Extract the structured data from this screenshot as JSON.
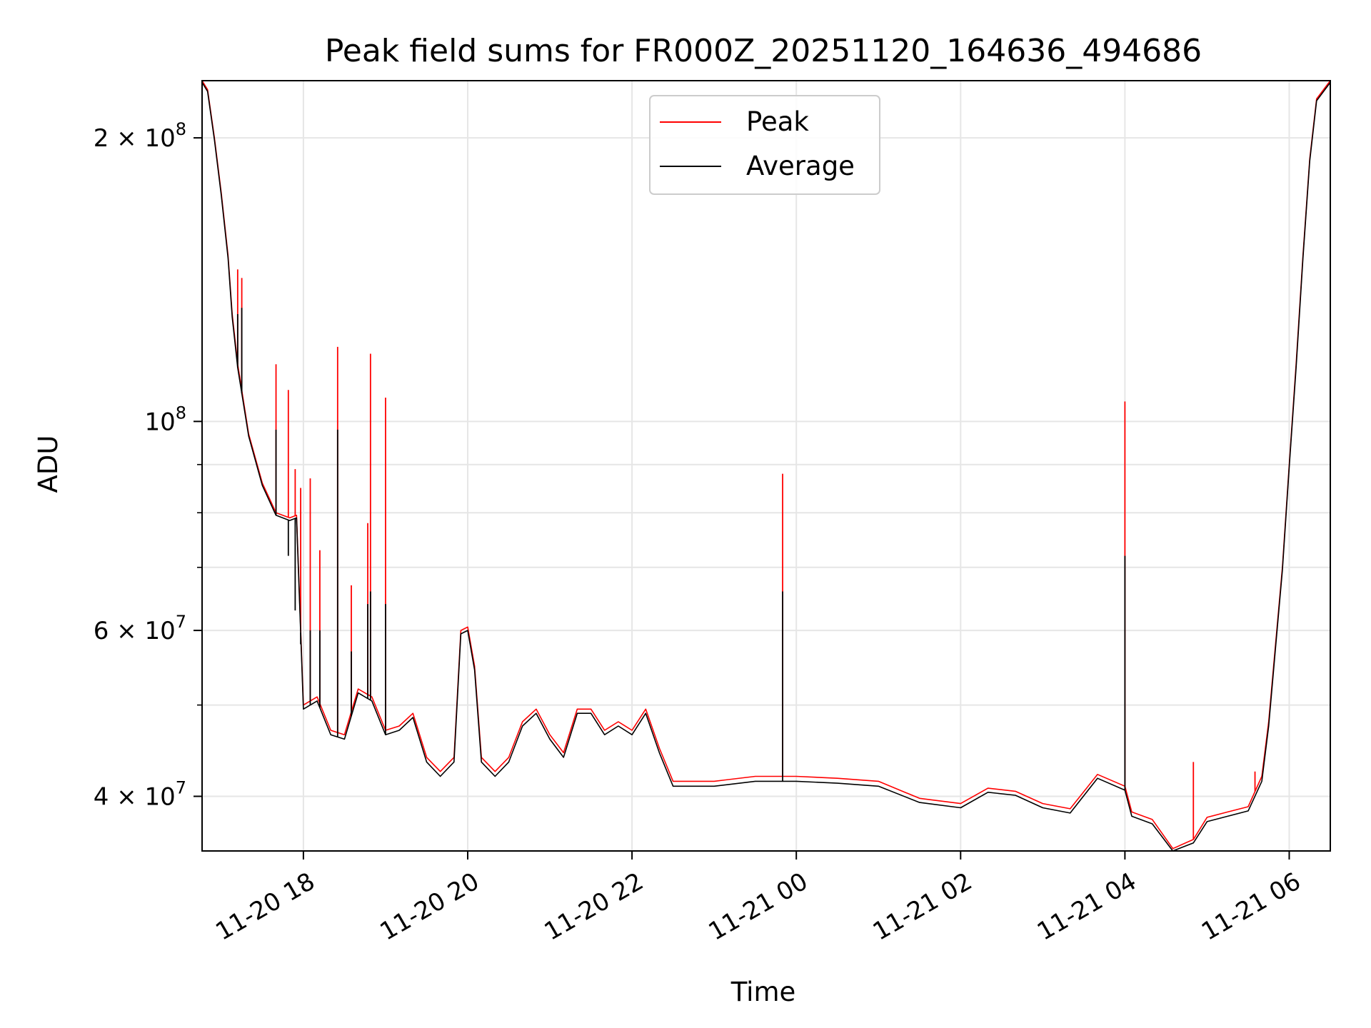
{
  "chart_data": {
    "type": "line",
    "title": "Peak field sums for FR000Z_20251120_164636_494686",
    "xlabel": "Time",
    "ylabel": "ADU",
    "x_range": [
      "2025-11-20 16:46",
      "2025-11-21 06:30"
    ],
    "yscale": "log",
    "ylim": [
      35000000,
      230000000
    ],
    "grid": true,
    "legend_position": "top-center",
    "xticks": [
      {
        "t": "2025-11-20 18:00",
        "label": "11-20 18"
      },
      {
        "t": "2025-11-20 20:00",
        "label": "11-20 20"
      },
      {
        "t": "2025-11-20 22:00",
        "label": "11-20 22"
      },
      {
        "t": "2025-11-21 00:00",
        "label": "11-21 00"
      },
      {
        "t": "2025-11-21 02:00",
        "label": "11-21 02"
      },
      {
        "t": "2025-11-21 04:00",
        "label": "11-21 04"
      },
      {
        "t": "2025-11-21 06:00",
        "label": "11-21 06"
      }
    ],
    "yticks": [
      {
        "v": 40000000,
        "base": "4 × 10",
        "exp": "7"
      },
      {
        "v": 60000000,
        "base": "6 × 10",
        "exp": "7"
      },
      {
        "v": 100000000,
        "base": "10",
        "exp": "8"
      },
      {
        "v": 200000000,
        "base": "2 × 10",
        "exp": "8"
      }
    ],
    "y_minor_ticks": [
      50000000,
      70000000,
      80000000,
      90000000
    ],
    "series": [
      {
        "name": "Peak",
        "color": "#ff0000",
        "points": [
          [
            "2025-11-20 16:46",
            230000000
          ],
          [
            "2025-11-20 16:50",
            225000000
          ],
          [
            "2025-11-20 16:55",
            200000000
          ],
          [
            "2025-11-20 17:00",
            175000000
          ],
          [
            "2025-11-20 17:05",
            150000000
          ],
          [
            "2025-11-20 17:08",
            130000000
          ],
          [
            "2025-11-20 17:12",
            115000000
          ],
          [
            "2025-11-20 17:20",
            97000000
          ],
          [
            "2025-11-20 17:30",
            86000000
          ],
          [
            "2025-11-20 17:40",
            80000000
          ],
          [
            "2025-11-20 17:50",
            79000000
          ],
          [
            "2025-11-20 17:55",
            79500000
          ],
          [
            "2025-11-20 18:00",
            50000000
          ],
          [
            "2025-11-20 18:10",
            51000000
          ],
          [
            "2025-11-20 18:20",
            47000000
          ],
          [
            "2025-11-20 18:30",
            46500000
          ],
          [
            "2025-11-20 18:40",
            52000000
          ],
          [
            "2025-11-20 18:50",
            51000000
          ],
          [
            "2025-11-20 19:00",
            47000000
          ],
          [
            "2025-11-20 19:10",
            47500000
          ],
          [
            "2025-11-20 19:20",
            49000000
          ],
          [
            "2025-11-20 19:30",
            44000000
          ],
          [
            "2025-11-20 19:40",
            42500000
          ],
          [
            "2025-11-20 19:50",
            44000000
          ],
          [
            "2025-11-20 19:55",
            60000000
          ],
          [
            "2025-11-20 20:00",
            60500000
          ],
          [
            "2025-11-20 20:05",
            55000000
          ],
          [
            "2025-11-20 20:10",
            44000000
          ],
          [
            "2025-11-20 20:20",
            42500000
          ],
          [
            "2025-11-20 20:30",
            44000000
          ],
          [
            "2025-11-20 20:40",
            48000000
          ],
          [
            "2025-11-20 20:50",
            49500000
          ],
          [
            "2025-11-20 21:00",
            46500000
          ],
          [
            "2025-11-20 21:10",
            44500000
          ],
          [
            "2025-11-20 21:20",
            49500000
          ],
          [
            "2025-11-20 21:30",
            49500000
          ],
          [
            "2025-11-20 21:40",
            47000000
          ],
          [
            "2025-11-20 21:50",
            48000000
          ],
          [
            "2025-11-20 22:00",
            47000000
          ],
          [
            "2025-11-20 22:10",
            49500000
          ],
          [
            "2025-11-20 22:20",
            45000000
          ],
          [
            "2025-11-20 22:30",
            41500000
          ],
          [
            "2025-11-20 23:00",
            41500000
          ],
          [
            "2025-11-20 23:30",
            42000000
          ],
          [
            "2025-11-21 00:00",
            42000000
          ],
          [
            "2025-11-21 00:30",
            41800000
          ],
          [
            "2025-11-21 01:00",
            41500000
          ],
          [
            "2025-11-21 01:30",
            39800000
          ],
          [
            "2025-11-21 02:00",
            39300000
          ],
          [
            "2025-11-21 02:20",
            40800000
          ],
          [
            "2025-11-21 02:40",
            40500000
          ],
          [
            "2025-11-21 03:00",
            39300000
          ],
          [
            "2025-11-21 03:20",
            38800000
          ],
          [
            "2025-11-21 03:40",
            42200000
          ],
          [
            "2025-11-21 04:00",
            41000000
          ],
          [
            "2025-11-21 04:05",
            38500000
          ],
          [
            "2025-11-21 04:20",
            37800000
          ],
          [
            "2025-11-21 04:35",
            35200000
          ],
          [
            "2025-11-21 04:50",
            36000000
          ],
          [
            "2025-11-21 05:00",
            38000000
          ],
          [
            "2025-11-21 05:15",
            38500000
          ],
          [
            "2025-11-21 05:30",
            39000000
          ],
          [
            "2025-11-21 05:40",
            42000000
          ],
          [
            "2025-11-21 05:45",
            48000000
          ],
          [
            "2025-11-21 05:50",
            58000000
          ],
          [
            "2025-11-21 05:55",
            70000000
          ],
          [
            "2025-11-21 06:00",
            90000000
          ],
          [
            "2025-11-21 06:05",
            115000000
          ],
          [
            "2025-11-21 06:10",
            150000000
          ],
          [
            "2025-11-21 06:15",
            190000000
          ],
          [
            "2025-11-21 06:20",
            220000000
          ],
          [
            "2025-11-21 06:30",
            230000000
          ]
        ],
        "spikes": [
          [
            "2025-11-20 17:12",
            145000000
          ],
          [
            "2025-11-20 17:15",
            142000000
          ],
          [
            "2025-11-20 17:40",
            115000000
          ],
          [
            "2025-11-20 17:49",
            108000000
          ],
          [
            "2025-11-20 17:54",
            89000000
          ],
          [
            "2025-11-20 17:58",
            85000000
          ],
          [
            "2025-11-20 18:05",
            87000000
          ],
          [
            "2025-11-20 18:12",
            73000000
          ],
          [
            "2025-11-20 18:25",
            120000000
          ],
          [
            "2025-11-20 18:35",
            67000000
          ],
          [
            "2025-11-20 18:47",
            78000000
          ],
          [
            "2025-11-20 18:49",
            118000000
          ],
          [
            "2025-11-20 19:00",
            106000000
          ],
          [
            "2025-11-20 23:50",
            88000000
          ],
          [
            "2025-11-21 04:00",
            105000000
          ],
          [
            "2025-11-21 04:50",
            43500000
          ],
          [
            "2025-11-21 05:35",
            42500000
          ]
        ]
      },
      {
        "name": "Average",
        "color": "#000000",
        "points": [
          [
            "2025-11-20 16:46",
            229000000
          ],
          [
            "2025-11-20 16:50",
            224000000
          ],
          [
            "2025-11-20 16:55",
            199000000
          ],
          [
            "2025-11-20 17:00",
            174000000
          ],
          [
            "2025-11-20 17:05",
            149000000
          ],
          [
            "2025-11-20 17:08",
            129000000
          ],
          [
            "2025-11-20 17:12",
            114000000
          ],
          [
            "2025-11-20 17:20",
            96500000
          ],
          [
            "2025-11-20 17:30",
            85500000
          ],
          [
            "2025-11-20 17:40",
            79500000
          ],
          [
            "2025-11-20 17:50",
            78500000
          ],
          [
            "2025-11-20 17:55",
            79000000
          ],
          [
            "2025-11-20 18:00",
            49500000
          ],
          [
            "2025-11-20 18:10",
            50500000
          ],
          [
            "2025-11-20 18:20",
            46500000
          ],
          [
            "2025-11-20 18:30",
            46000000
          ],
          [
            "2025-11-20 18:40",
            51500000
          ],
          [
            "2025-11-20 18:50",
            50500000
          ],
          [
            "2025-11-20 19:00",
            46500000
          ],
          [
            "2025-11-20 19:10",
            47000000
          ],
          [
            "2025-11-20 19:20",
            48500000
          ],
          [
            "2025-11-20 19:30",
            43500000
          ],
          [
            "2025-11-20 19:40",
            42000000
          ],
          [
            "2025-11-20 19:50",
            43500000
          ],
          [
            "2025-11-20 19:55",
            59500000
          ],
          [
            "2025-11-20 20:00",
            60000000
          ],
          [
            "2025-11-20 20:05",
            54500000
          ],
          [
            "2025-11-20 20:10",
            43500000
          ],
          [
            "2025-11-20 20:20",
            42000000
          ],
          [
            "2025-11-20 20:30",
            43500000
          ],
          [
            "2025-11-20 20:40",
            47500000
          ],
          [
            "2025-11-20 20:50",
            49000000
          ],
          [
            "2025-11-20 21:00",
            46000000
          ],
          [
            "2025-11-20 21:10",
            44000000
          ],
          [
            "2025-11-20 21:20",
            49000000
          ],
          [
            "2025-11-20 21:30",
            49000000
          ],
          [
            "2025-11-20 21:40",
            46500000
          ],
          [
            "2025-11-20 21:50",
            47500000
          ],
          [
            "2025-11-20 22:00",
            46500000
          ],
          [
            "2025-11-20 22:10",
            49000000
          ],
          [
            "2025-11-20 22:20",
            44500000
          ],
          [
            "2025-11-20 22:30",
            41000000
          ],
          [
            "2025-11-20 23:00",
            41000000
          ],
          [
            "2025-11-20 23:30",
            41500000
          ],
          [
            "2025-11-21 00:00",
            41500000
          ],
          [
            "2025-11-21 00:30",
            41300000
          ],
          [
            "2025-11-21 01:00",
            41000000
          ],
          [
            "2025-11-21 01:30",
            39400000
          ],
          [
            "2025-11-21 02:00",
            38900000
          ],
          [
            "2025-11-21 02:20",
            40400000
          ],
          [
            "2025-11-21 02:40",
            40100000
          ],
          [
            "2025-11-21 03:00",
            38900000
          ],
          [
            "2025-11-21 03:20",
            38400000
          ],
          [
            "2025-11-21 03:40",
            41800000
          ],
          [
            "2025-11-21 04:00",
            40600000
          ],
          [
            "2025-11-21 04:05",
            38100000
          ],
          [
            "2025-11-21 04:20",
            37400000
          ],
          [
            "2025-11-21 04:35",
            34900000
          ],
          [
            "2025-11-21 04:50",
            35700000
          ],
          [
            "2025-11-21 05:00",
            37600000
          ],
          [
            "2025-11-21 05:15",
            38100000
          ],
          [
            "2025-11-21 05:30",
            38600000
          ],
          [
            "2025-11-21 05:40",
            41500000
          ],
          [
            "2025-11-21 05:45",
            47500000
          ],
          [
            "2025-11-21 05:50",
            57500000
          ],
          [
            "2025-11-21 05:55",
            69500000
          ],
          [
            "2025-11-21 06:00",
            89500000
          ],
          [
            "2025-11-21 06:05",
            114000000
          ],
          [
            "2025-11-21 06:10",
            149000000
          ],
          [
            "2025-11-21 06:15",
            189000000
          ],
          [
            "2025-11-21 06:20",
            219000000
          ],
          [
            "2025-11-21 06:30",
            229000000
          ]
        ],
        "spikes": [
          [
            "2025-11-20 17:12",
            130000000
          ],
          [
            "2025-11-20 17:15",
            132000000
          ],
          [
            "2025-11-20 17:40",
            98000000
          ],
          [
            "2025-11-20 17:49",
            72000000
          ],
          [
            "2025-11-20 17:54",
            63000000
          ],
          [
            "2025-11-20 17:58",
            58000000
          ],
          [
            "2025-11-20 18:05",
            60000000
          ],
          [
            "2025-11-20 18:12",
            60000000
          ],
          [
            "2025-11-20 18:25",
            98000000
          ],
          [
            "2025-11-20 18:35",
            57000000
          ],
          [
            "2025-11-20 18:47",
            64000000
          ],
          [
            "2025-11-20 18:49",
            66000000
          ],
          [
            "2025-11-20 19:00",
            64000000
          ],
          [
            "2025-11-20 23:50",
            66000000
          ],
          [
            "2025-11-21 04:00",
            72000000
          ]
        ]
      }
    ]
  }
}
